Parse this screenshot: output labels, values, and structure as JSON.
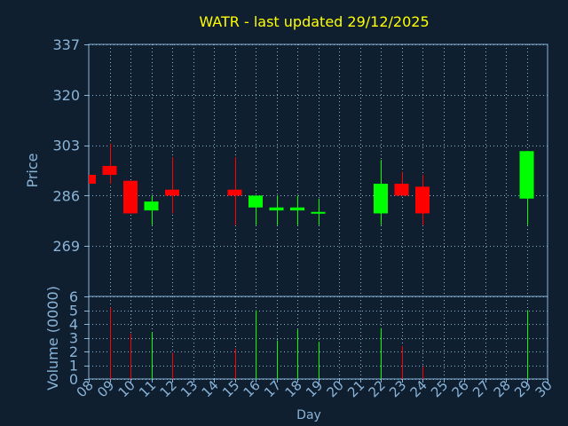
{
  "chart_data": {
    "type": "candlestick",
    "title": "WATR - last updated 29/12/2025",
    "colors": {
      "background": "#0f1f30",
      "title": "#ffff00",
      "axis_text": "#8ab4d8",
      "frame": "#8ab4d8",
      "grid": "#8ab4d8",
      "up": "#00ff00",
      "down": "#ff0000"
    },
    "grid": true,
    "price_panel": {
      "ylabel": "Price",
      "ylim": [
        252,
        337
      ],
      "yticks": [
        "337",
        "320",
        "303",
        "286",
        "269"
      ],
      "ytick_values": [
        337,
        320,
        303,
        286,
        269
      ]
    },
    "volume_panel": {
      "ylabel": "Volume (0000)",
      "ylim": [
        0,
        6
      ],
      "yticks": [
        "6",
        "5",
        "4",
        "3",
        "2",
        "1",
        "0"
      ],
      "ytick_values": [
        6,
        5,
        4,
        3,
        2,
        1,
        0
      ]
    },
    "xlabel": "Day",
    "xlim": [
      8,
      30
    ],
    "xticks": [
      "08",
      "09",
      "10",
      "11",
      "12",
      "13",
      "14",
      "15",
      "16",
      "17",
      "18",
      "19",
      "20",
      "21",
      "22",
      "23",
      "24",
      "25",
      "26",
      "27",
      "28",
      "29",
      "30"
    ],
    "xtick_values": [
      8,
      9,
      10,
      11,
      12,
      13,
      14,
      15,
      16,
      17,
      18,
      19,
      20,
      21,
      22,
      23,
      24,
      25,
      26,
      27,
      28,
      29,
      30
    ],
    "candles": [
      {
        "day": 8,
        "open": 293,
        "close": 290,
        "high": 293,
        "low": 290
      },
      {
        "day": 9,
        "open": 296,
        "close": 293,
        "high": 303.5,
        "low": 290
      },
      {
        "day": 10,
        "open": 291,
        "close": 280,
        "high": 291,
        "low": 280
      },
      {
        "day": 11,
        "open": 281,
        "close": 284,
        "high": 286,
        "low": 276
      },
      {
        "day": 12,
        "open": 288,
        "close": 286,
        "high": 299,
        "low": 280
      },
      {
        "day": 15,
        "open": 288,
        "close": 286,
        "high": 299,
        "low": 276
      },
      {
        "day": 16,
        "open": 282,
        "close": 286,
        "high": 286,
        "low": 276
      },
      {
        "day": 17,
        "open": 281,
        "close": 282,
        "high": 286,
        "low": 276
      },
      {
        "day": 18,
        "open": 281,
        "close": 282,
        "high": 286,
        "low": 276
      },
      {
        "day": 19,
        "open": 280,
        "close": 280.5,
        "high": 285,
        "low": 276
      },
      {
        "day": 22,
        "open": 280,
        "close": 290,
        "high": 298,
        "low": 276
      },
      {
        "day": 23,
        "open": 290,
        "close": 286,
        "high": 294,
        "low": 286
      },
      {
        "day": 24,
        "open": 289,
        "close": 280,
        "high": 293,
        "low": 276
      },
      {
        "day": 29,
        "open": 285,
        "close": 301,
        "high": 301,
        "low": 276
      }
    ],
    "volumes": [
      {
        "day": 9,
        "value": 5.2,
        "direction": "down"
      },
      {
        "day": 10,
        "value": 3.3,
        "direction": "down"
      },
      {
        "day": 11,
        "value": 3.4,
        "direction": "up"
      },
      {
        "day": 12,
        "value": 1.9,
        "direction": "down"
      },
      {
        "day": 15,
        "value": 2.2,
        "direction": "down"
      },
      {
        "day": 16,
        "value": 5.0,
        "direction": "up"
      },
      {
        "day": 17,
        "value": 2.8,
        "direction": "up"
      },
      {
        "day": 18,
        "value": 3.6,
        "direction": "up"
      },
      {
        "day": 19,
        "value": 2.7,
        "direction": "up"
      },
      {
        "day": 22,
        "value": 3.7,
        "direction": "up"
      },
      {
        "day": 23,
        "value": 2.4,
        "direction": "down"
      },
      {
        "day": 24,
        "value": 0.9,
        "direction": "down"
      },
      {
        "day": 29,
        "value": 5.0,
        "direction": "up"
      }
    ]
  }
}
